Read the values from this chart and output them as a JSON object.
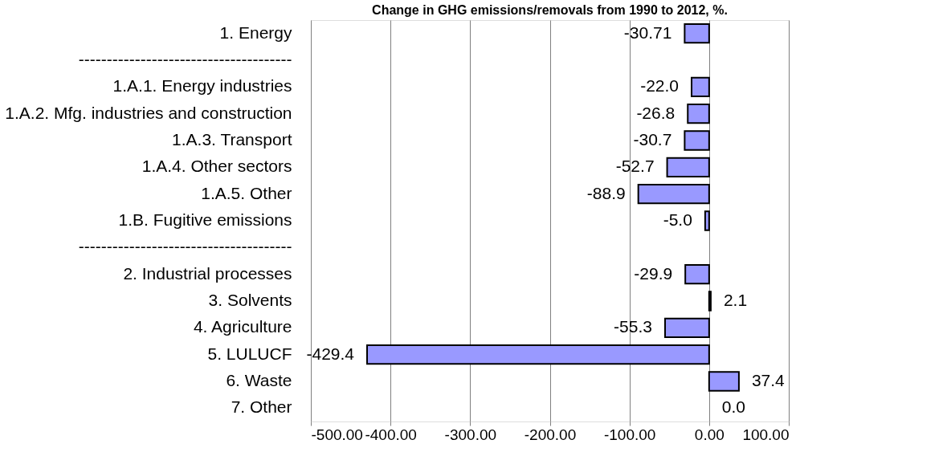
{
  "chart_data": {
    "type": "bar",
    "orientation": "horizontal",
    "title": "Change in GHG emissions/removals from 1990 to 2012, %.",
    "categories": [
      "1. Energy",
      "--------------------------------------",
      "1.A.1. Energy industries",
      "1.A.2. Mfg. industries and construction",
      "1.A.3. Transport",
      "1.A.4. Other sectors",
      "1.A.5. Other",
      "1.B. Fugitive emissions",
      "--------------------------------------",
      "2.   Industrial processes",
      "3.   Solvents",
      "4.   Agriculture",
      "5.   LULUCF",
      "6.   Waste",
      "7.   Other"
    ],
    "values": [
      -30.71,
      null,
      -22.0,
      -26.8,
      -30.7,
      -52.7,
      -88.9,
      -5.0,
      null,
      -29.9,
      2.1,
      -55.3,
      -429.4,
      37.4,
      0.0
    ],
    "value_labels": [
      "-30.71",
      null,
      "-22.0",
      "-26.8",
      "-30.7",
      "-52.7",
      "-88.9",
      "-5.0",
      null,
      "-29.9",
      "2.1",
      "-55.3",
      "-429.4",
      "37.4",
      "0.0"
    ],
    "color": "#9999ff",
    "xlim": [
      -500,
      100
    ],
    "xticks": [
      {
        "value": -500,
        "label": "-500.00"
      },
      {
        "value": -400,
        "label": "-400.00"
      },
      {
        "value": -300,
        "label": "-300.00"
      },
      {
        "value": -200,
        "label": "-200.00"
      },
      {
        "value": -100,
        "label": "-100.00"
      },
      {
        "value": 0,
        "label": "0.00"
      },
      {
        "value": 100,
        "label": "100.00"
      }
    ],
    "grid": "x",
    "legend": false
  }
}
